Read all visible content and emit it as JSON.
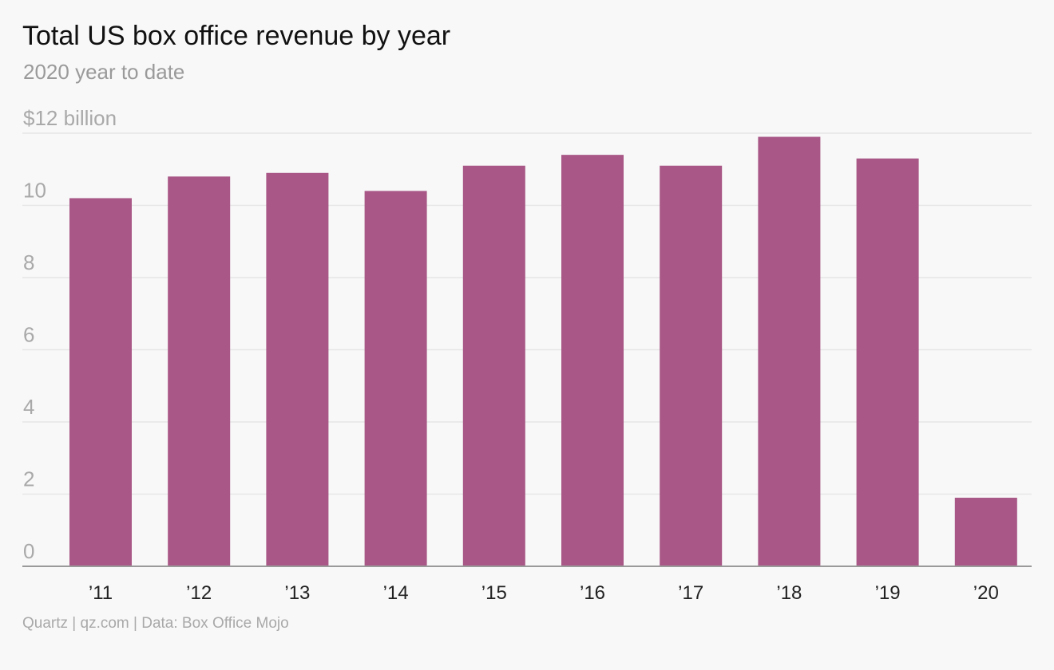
{
  "colors": {
    "bar": "#a85786",
    "background": "#f8f8f8",
    "grid": "#e6e6e6",
    "axis": "#9a9a9a"
  },
  "footer": {
    "source_text": "Quartz | qz.com | Data: Box Office Mojo"
  },
  "chart_data": {
    "type": "bar",
    "title": "Total US box office revenue by year",
    "subtitle": "2020 year to date",
    "categories": [
      "’11",
      "’12",
      "’13",
      "’14",
      "’15",
      "’16",
      "’17",
      "’18",
      "’19",
      "’20"
    ],
    "values": [
      10.2,
      10.8,
      10.9,
      10.4,
      11.1,
      11.4,
      11.1,
      11.9,
      11.3,
      1.9
    ],
    "yticks": [
      0,
      2,
      4,
      6,
      8,
      10,
      12
    ],
    "ytick_labels": [
      "0",
      "2",
      "4",
      "6",
      "8",
      "10",
      "$12 billion"
    ],
    "ylim": [
      0,
      12
    ],
    "xlabel": "",
    "ylabel": "",
    "grid": true,
    "legend": "none"
  }
}
